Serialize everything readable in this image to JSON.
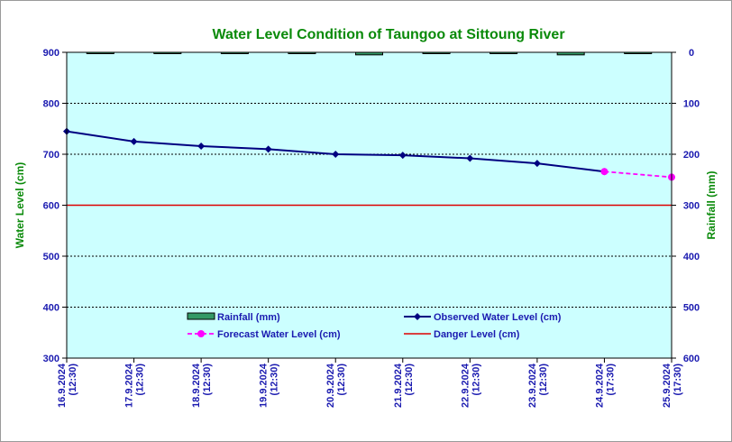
{
  "chart_data": {
    "type": "line",
    "title": "Water Level Condition of Taungoo at  Sittoung River",
    "ylabel_left": "Water Level (cm)",
    "ylabel_right": "Rainfall (mm)",
    "ylim_left": [
      300,
      900
    ],
    "ylim_right": [
      600,
      0
    ],
    "yticks_left": [
      "900",
      "800",
      "700",
      "600",
      "500",
      "400",
      "300"
    ],
    "yticks_right": [
      "0",
      "100",
      "200",
      "300",
      "400",
      "500",
      "600"
    ],
    "categories": [
      {
        "date": "16.9.2024",
        "time": "(12:30)"
      },
      {
        "date": "17.9.2024",
        "time": "(12:30)"
      },
      {
        "date": "18.9.2024",
        "time": "(12:30)"
      },
      {
        "date": "19.9.2024",
        "time": "(12:30)"
      },
      {
        "date": "20.9.2024",
        "time": "(12:30)"
      },
      {
        "date": "21.9.2024",
        "time": "(12:30)"
      },
      {
        "date": "22.9.2024",
        "time": "(12:30)"
      },
      {
        "date": "23.9.2024",
        "time": "(12:30)"
      },
      {
        "date": "24.9.2024",
        "time": "(17:30)"
      },
      {
        "date": "25.9.2024",
        "time": "(17:30)"
      }
    ],
    "rainfall_mm": [
      0,
      0,
      0,
      0,
      5,
      2,
      0,
      5,
      0
    ],
    "observed": [
      745,
      725,
      716,
      710,
      700,
      698,
      692,
      682,
      666
    ],
    "forecast": {
      "start_index": 8,
      "values": [
        666,
        655
      ]
    },
    "danger_level": 600,
    "legend": {
      "rainfall": "Rainfall (mm)",
      "observed": "Observed Water Level (cm)",
      "forecast": "Forecast Water Level (cm)",
      "danger": "Danger Level (cm)"
    },
    "grid": true,
    "colors": {
      "plot_bg": "#ccffff",
      "observed": "#000080",
      "forecast": "#ff00ff",
      "danger": "#dd0000",
      "rainfall_fill": "#339966",
      "title": "#0a8a0a",
      "ticks": "#1a1ab0"
    }
  }
}
